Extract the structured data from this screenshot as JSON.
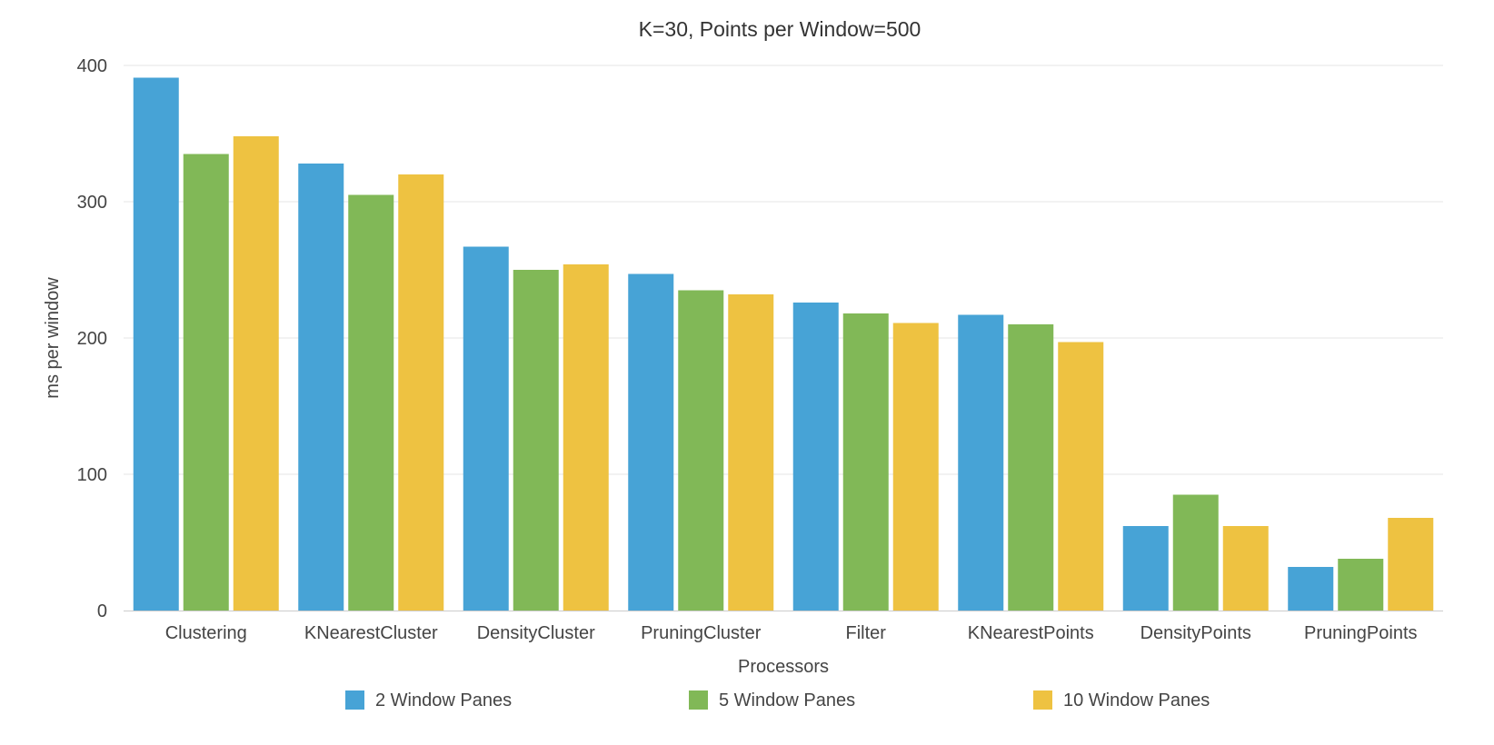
{
  "chart_data": {
    "type": "bar",
    "title": "K=30, Points per Window=500",
    "xlabel": "Processors",
    "ylabel": "ms per window",
    "categories": [
      "Clustering",
      "KNearestCluster",
      "DensityCluster",
      "PruningCluster",
      "Filter",
      "KNearestPoints",
      "DensityPoints",
      "PruningPoints"
    ],
    "series": [
      {
        "name": "2 Window Panes",
        "color": "#47A3D6",
        "values": [
          391,
          328,
          267,
          247,
          226,
          217,
          62,
          32
        ]
      },
      {
        "name": "5 Window Panes",
        "color": "#81B857",
        "values": [
          335,
          305,
          250,
          235,
          218,
          210,
          85,
          38
        ]
      },
      {
        "name": "10 Window Panes",
        "color": "#EEC241",
        "values": [
          348,
          320,
          254,
          232,
          211,
          197,
          62,
          68
        ]
      }
    ],
    "ylim": [
      0,
      400
    ],
    "yticks": [
      0,
      100,
      200,
      300,
      400
    ],
    "grid": true,
    "legend_position": "bottom"
  }
}
